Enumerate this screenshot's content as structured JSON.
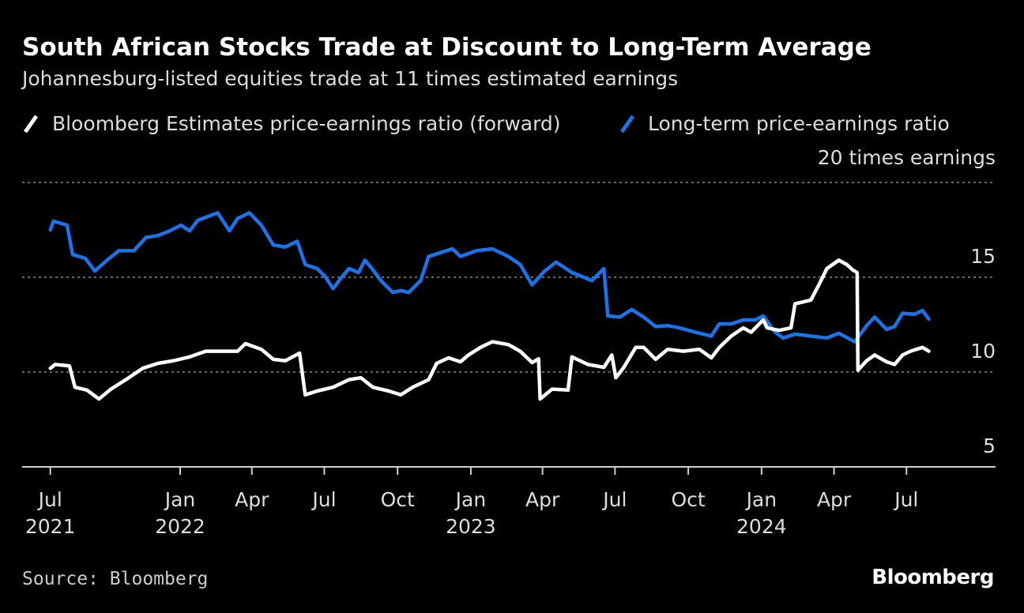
{
  "chart_data": {
    "type": "line",
    "title": "South African Stocks Trade at Discount to Long-Term Average",
    "subtitle": "Johannesburg-listed equities trade at 11 times estimated earnings",
    "ylabel": "20 times earnings",
    "ylim": [
      5,
      20
    ],
    "yticks": [
      {
        "value": 20,
        "label": ""
      },
      {
        "value": 15,
        "label": "15"
      },
      {
        "value": 10,
        "label": "10"
      },
      {
        "value": 5,
        "label": "5"
      }
    ],
    "xticks": [
      {
        "date": "2021-07",
        "label": "Jul",
        "year": "2021"
      },
      {
        "date": "2022-01",
        "label": "Jan",
        "year": "2022"
      },
      {
        "date": "2022-04",
        "label": "Apr",
        "year": ""
      },
      {
        "date": "2022-07",
        "label": "Jul",
        "year": ""
      },
      {
        "date": "2022-10",
        "label": "Oct",
        "year": ""
      },
      {
        "date": "2023-01",
        "label": "Jan",
        "year": "2023"
      },
      {
        "date": "2023-04",
        "label": "Apr",
        "year": ""
      },
      {
        "date": "2023-07",
        "label": "Jul",
        "year": ""
      },
      {
        "date": "2023-10",
        "label": "Oct",
        "year": ""
      },
      {
        "date": "2024-01",
        "label": "Jan",
        "year": "2024"
      },
      {
        "date": "2024-04",
        "label": "Apr",
        "year": ""
      },
      {
        "date": "2024-07",
        "label": "Jul",
        "year": ""
      }
    ],
    "grid": true,
    "legend_position": "top",
    "series": [
      {
        "name": "Bloomberg Estimates price-earnings ratio (forward)",
        "color": "#ffffff",
        "points": [
          [
            "2021-07-22",
            10.2
          ],
          [
            "2021-07-28",
            10.4
          ],
          [
            "2021-08-15",
            10.33
          ],
          [
            "2021-08-22",
            9.2
          ],
          [
            "2021-09-06",
            9.05
          ],
          [
            "2021-09-21",
            8.58
          ],
          [
            "2021-10-06",
            9.1
          ],
          [
            "2021-10-26",
            9.63
          ],
          [
            "2021-11-15",
            10.2
          ],
          [
            "2021-12-04",
            10.46
          ],
          [
            "2021-12-24",
            10.6
          ],
          [
            "2022-01-13",
            10.8
          ],
          [
            "2022-02-02",
            11.1
          ],
          [
            "2022-02-22",
            11.1
          ],
          [
            "2022-03-14",
            11.1
          ],
          [
            "2022-03-24",
            11.5
          ],
          [
            "2022-04-13",
            11.2
          ],
          [
            "2022-04-28",
            10.67
          ],
          [
            "2022-05-13",
            10.6
          ],
          [
            "2022-05-31",
            11.0
          ],
          [
            "2022-06-07",
            8.8
          ],
          [
            "2022-06-22",
            9.0
          ],
          [
            "2022-07-12",
            9.2
          ],
          [
            "2022-08-01",
            9.6
          ],
          [
            "2022-08-16",
            9.7
          ],
          [
            "2022-08-31",
            9.2
          ],
          [
            "2022-09-20",
            9.0
          ],
          [
            "2022-10-05",
            8.8
          ],
          [
            "2022-10-20",
            9.2
          ],
          [
            "2022-11-09",
            9.6
          ],
          [
            "2022-11-19",
            10.46
          ],
          [
            "2022-12-04",
            10.75
          ],
          [
            "2022-12-19",
            10.54
          ],
          [
            "2022-12-29",
            10.9
          ],
          [
            "2023-01-13",
            11.3
          ],
          [
            "2023-01-28",
            11.6
          ],
          [
            "2023-02-17",
            11.45
          ],
          [
            "2023-03-04",
            11.1
          ],
          [
            "2023-03-19",
            10.5
          ],
          [
            "2023-03-27",
            10.7
          ],
          [
            "2023-03-29",
            8.58
          ],
          [
            "2023-04-13",
            9.1
          ],
          [
            "2023-05-03",
            9.05
          ],
          [
            "2023-05-08",
            10.8
          ],
          [
            "2023-05-28",
            10.4
          ],
          [
            "2023-06-17",
            10.25
          ],
          [
            "2023-06-27",
            10.9
          ],
          [
            "2023-07-02",
            9.7
          ],
          [
            "2023-07-12",
            10.25
          ],
          [
            "2023-07-27",
            11.3
          ],
          [
            "2023-08-06",
            11.3
          ],
          [
            "2023-08-21",
            10.67
          ],
          [
            "2023-09-05",
            11.2
          ],
          [
            "2023-09-25",
            11.1
          ],
          [
            "2023-10-15",
            11.2
          ],
          [
            "2023-10-30",
            10.75
          ],
          [
            "2023-11-09",
            11.3
          ],
          [
            "2023-11-24",
            11.9
          ],
          [
            "2023-12-09",
            12.33
          ],
          [
            "2023-12-19",
            12.1
          ],
          [
            "2024-01-03",
            12.75
          ],
          [
            "2024-01-08",
            12.33
          ],
          [
            "2024-01-23",
            12.2
          ],
          [
            "2024-02-07",
            12.33
          ],
          [
            "2024-02-12",
            13.6
          ],
          [
            "2024-03-03",
            13.8
          ],
          [
            "2024-03-13",
            14.6
          ],
          [
            "2024-03-23",
            15.46
          ],
          [
            "2024-04-07",
            15.9
          ],
          [
            "2024-04-17",
            15.67
          ],
          [
            "2024-04-24",
            15.4
          ],
          [
            "2024-04-30",
            15.25
          ],
          [
            "2024-05-01",
            10.1
          ],
          [
            "2024-05-12",
            10.6
          ],
          [
            "2024-05-22",
            10.9
          ],
          [
            "2024-06-06",
            10.54
          ],
          [
            "2024-06-16",
            10.4
          ],
          [
            "2024-06-26",
            10.9
          ],
          [
            "2024-07-06",
            11.1
          ],
          [
            "2024-07-21",
            11.3
          ],
          [
            "2024-07-29",
            11.1
          ]
        ]
      },
      {
        "name": "Long-term price-earnings ratio",
        "color": "#1a73e8",
        "points": [
          [
            "2021-07-22",
            17.5
          ],
          [
            "2021-07-26",
            17.96
          ],
          [
            "2021-08-12",
            17.75
          ],
          [
            "2021-08-19",
            16.2
          ],
          [
            "2021-09-04",
            16.0
          ],
          [
            "2021-09-16",
            15.33
          ],
          [
            "2021-10-01",
            15.9
          ],
          [
            "2021-10-16",
            16.4
          ],
          [
            "2021-11-04",
            16.4
          ],
          [
            "2021-11-19",
            17.1
          ],
          [
            "2021-12-04",
            17.2
          ],
          [
            "2021-12-19",
            17.45
          ],
          [
            "2022-01-02",
            17.75
          ],
          [
            "2022-01-13",
            17.45
          ],
          [
            "2022-01-23",
            18.0
          ],
          [
            "2022-02-17",
            18.4
          ],
          [
            "2022-03-04",
            17.45
          ],
          [
            "2022-03-14",
            18.1
          ],
          [
            "2022-03-29",
            18.4
          ],
          [
            "2022-04-13",
            17.75
          ],
          [
            "2022-04-28",
            16.7
          ],
          [
            "2022-05-13",
            16.6
          ],
          [
            "2022-05-28",
            16.9
          ],
          [
            "2022-06-07",
            15.67
          ],
          [
            "2022-06-22",
            15.46
          ],
          [
            "2022-07-02",
            15.04
          ],
          [
            "2022-07-12",
            14.4
          ],
          [
            "2022-07-22",
            14.96
          ],
          [
            "2022-08-01",
            15.46
          ],
          [
            "2022-08-13",
            15.25
          ],
          [
            "2022-08-21",
            15.9
          ],
          [
            "2022-08-31",
            15.4
          ],
          [
            "2022-09-10",
            14.83
          ],
          [
            "2022-09-25",
            14.2
          ],
          [
            "2022-10-05",
            14.3
          ],
          [
            "2022-10-15",
            14.2
          ],
          [
            "2022-10-30",
            14.83
          ],
          [
            "2022-11-09",
            16.1
          ],
          [
            "2022-11-24",
            16.3
          ],
          [
            "2022-12-09",
            16.5
          ],
          [
            "2022-12-19",
            16.1
          ],
          [
            "2023-01-08",
            16.4
          ],
          [
            "2023-01-28",
            16.5
          ],
          [
            "2023-02-17",
            16.1
          ],
          [
            "2023-03-04",
            15.67
          ],
          [
            "2023-03-19",
            14.6
          ],
          [
            "2023-04-03",
            15.3
          ],
          [
            "2023-04-18",
            15.8
          ],
          [
            "2023-05-08",
            15.25
          ],
          [
            "2023-06-02",
            14.83
          ],
          [
            "2023-06-17",
            15.46
          ],
          [
            "2023-06-22",
            12.96
          ],
          [
            "2023-07-07",
            12.9
          ],
          [
            "2023-07-22",
            13.3
          ],
          [
            "2023-08-06",
            12.9
          ],
          [
            "2023-08-21",
            12.4
          ],
          [
            "2023-09-05",
            12.45
          ],
          [
            "2023-09-20",
            12.33
          ],
          [
            "2023-10-10",
            12.1
          ],
          [
            "2023-10-30",
            11.9
          ],
          [
            "2023-11-09",
            12.54
          ],
          [
            "2023-11-24",
            12.54
          ],
          [
            "2023-12-09",
            12.75
          ],
          [
            "2023-12-24",
            12.75
          ],
          [
            "2024-01-03",
            12.96
          ],
          [
            "2024-01-18",
            12.1
          ],
          [
            "2024-01-28",
            11.8
          ],
          [
            "2024-02-12",
            12.0
          ],
          [
            "2024-03-03",
            11.9
          ],
          [
            "2024-03-23",
            11.8
          ],
          [
            "2024-04-07",
            12.05
          ],
          [
            "2024-04-27",
            11.6
          ],
          [
            "2024-05-12",
            12.45
          ],
          [
            "2024-05-22",
            12.9
          ],
          [
            "2024-06-06",
            12.25
          ],
          [
            "2024-06-16",
            12.4
          ],
          [
            "2024-06-26",
            13.1
          ],
          [
            "2024-07-11",
            13.05
          ],
          [
            "2024-07-21",
            13.25
          ],
          [
            "2024-07-29",
            12.8
          ]
        ]
      }
    ]
  },
  "footer": {
    "source": "Source: Bloomberg",
    "logo": "Bloomberg"
  }
}
